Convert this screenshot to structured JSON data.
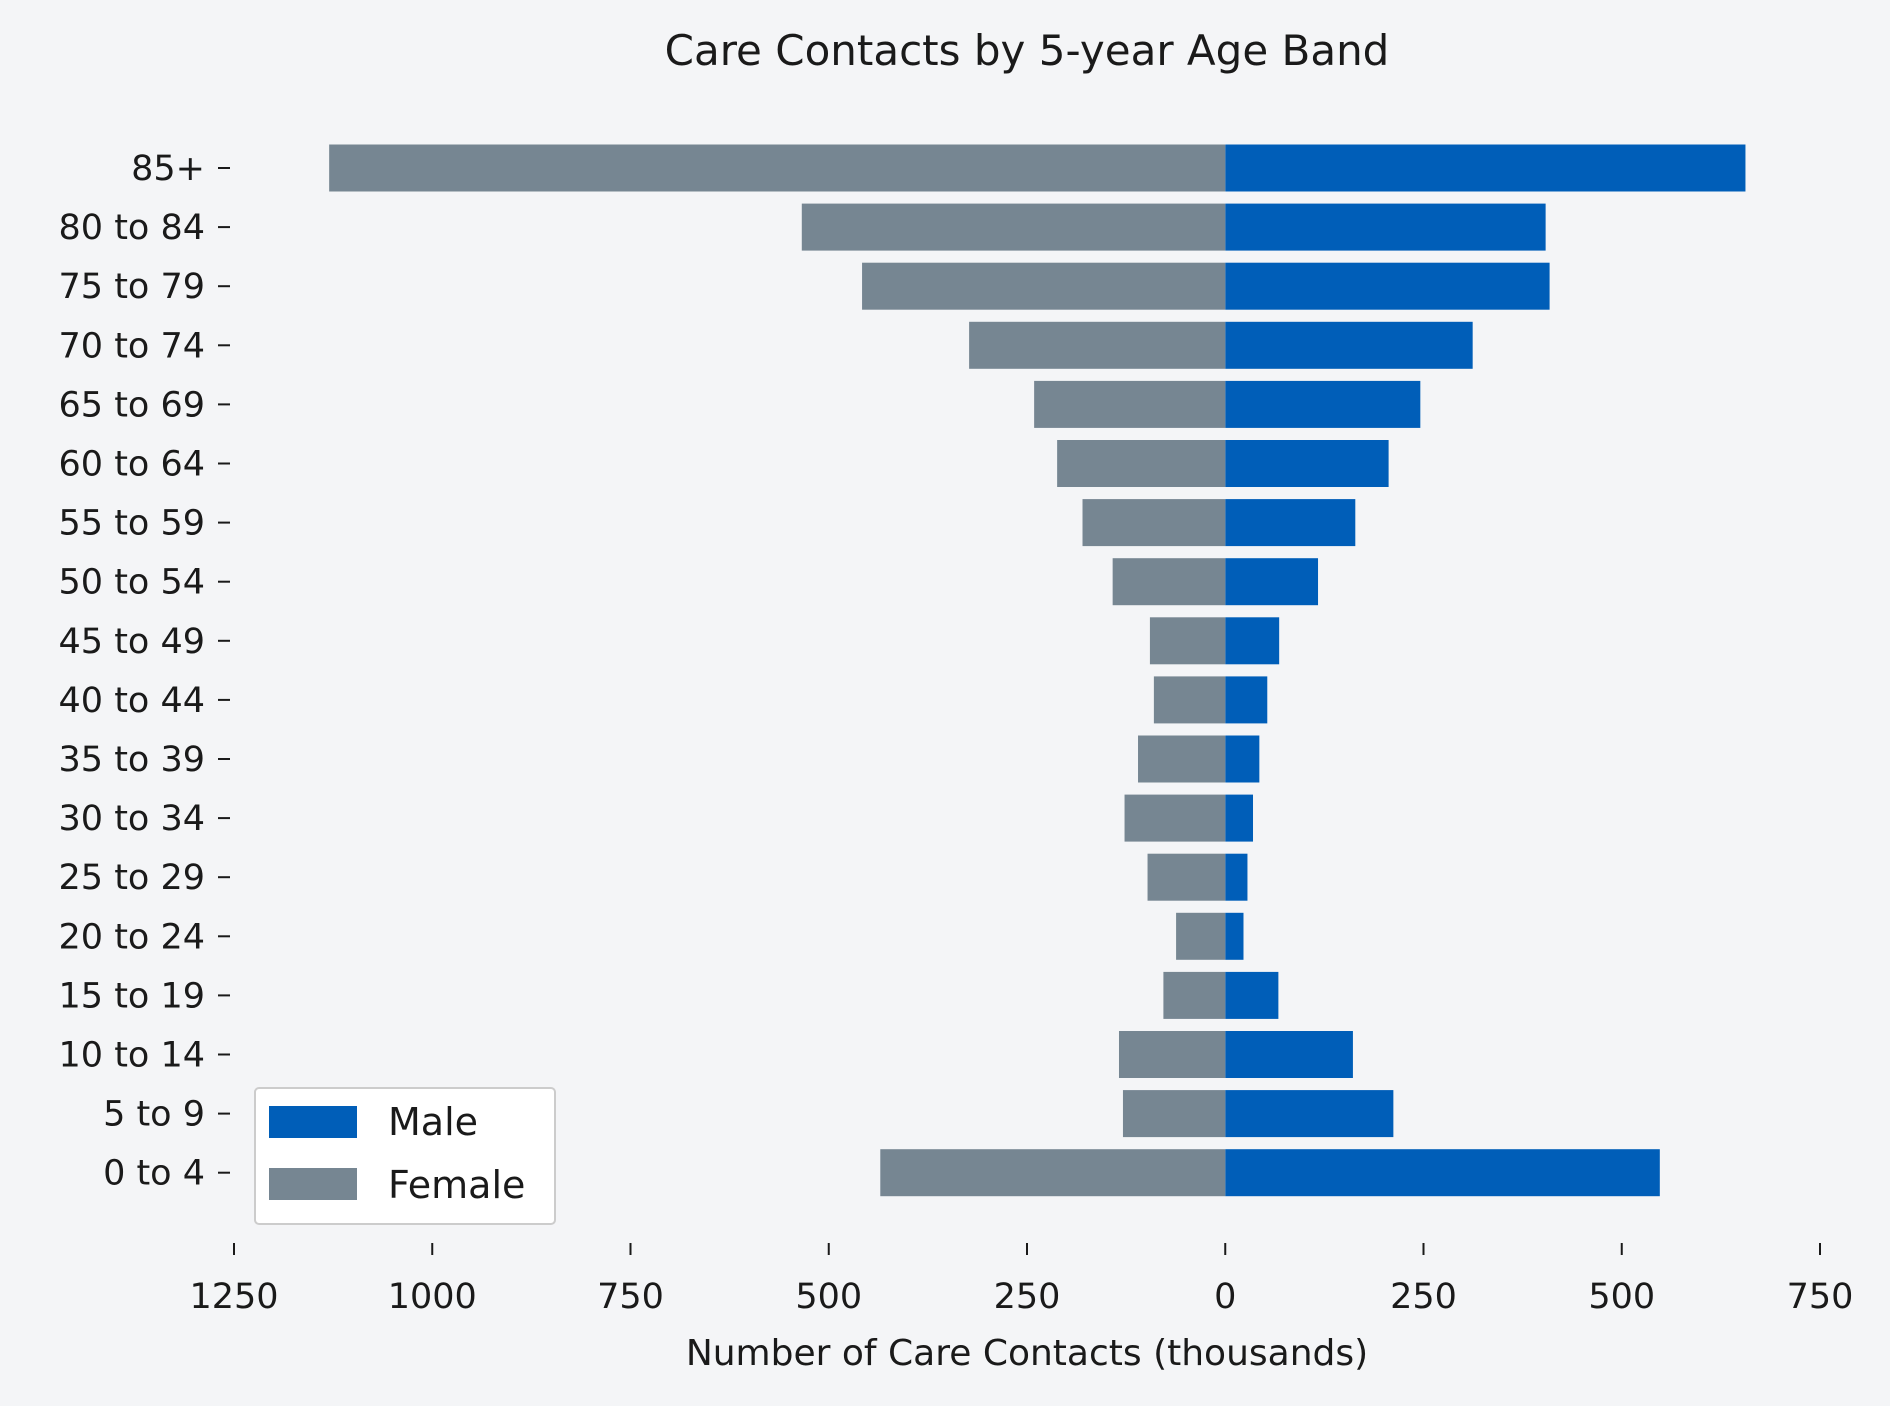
{
  "chart_data": {
    "type": "bar",
    "orientation": "horizontal",
    "title": "Care Contacts by 5-year Age Band",
    "xlabel": "Number of Care Contacts (thousands)",
    "ylabel": "",
    "xlim": [
      -1250,
      750
    ],
    "xticks": [
      -1250,
      -1000,
      -750,
      -500,
      -250,
      0,
      250,
      500,
      750
    ],
    "xtick_labels": [
      "1250",
      "1000",
      "750",
      "500",
      "250",
      "0",
      "250",
      "500",
      "750"
    ],
    "grid": false,
    "legend_position": "lower-left",
    "categories": [
      "0 to 4",
      "5 to 9",
      "10 to 14",
      "15 to 19",
      "20 to 24",
      "25 to 29",
      "30 to 34",
      "35 to 39",
      "40 to 44",
      "45 to 49",
      "50 to 54",
      "55 to 59",
      "60 to 64",
      "65 to 69",
      "70 to 74",
      "75 to 79",
      "80 to 84",
      "85+"
    ],
    "series": [
      {
        "name": "Male",
        "color": "#005eb8",
        "values": [
          548,
          212,
          161,
          67,
          23,
          28,
          35,
          43,
          53,
          68,
          117,
          164,
          206,
          246,
          312,
          409,
          404,
          656
        ]
      },
      {
        "name": "Female",
        "color": "#768692",
        "values": [
          -435,
          -129,
          -134,
          -78,
          -62,
          -98,
          -127,
          -110,
          -90,
          -95,
          -142,
          -180,
          -212,
          -241,
          -323,
          -458,
          -534,
          -1130
        ]
      }
    ]
  }
}
